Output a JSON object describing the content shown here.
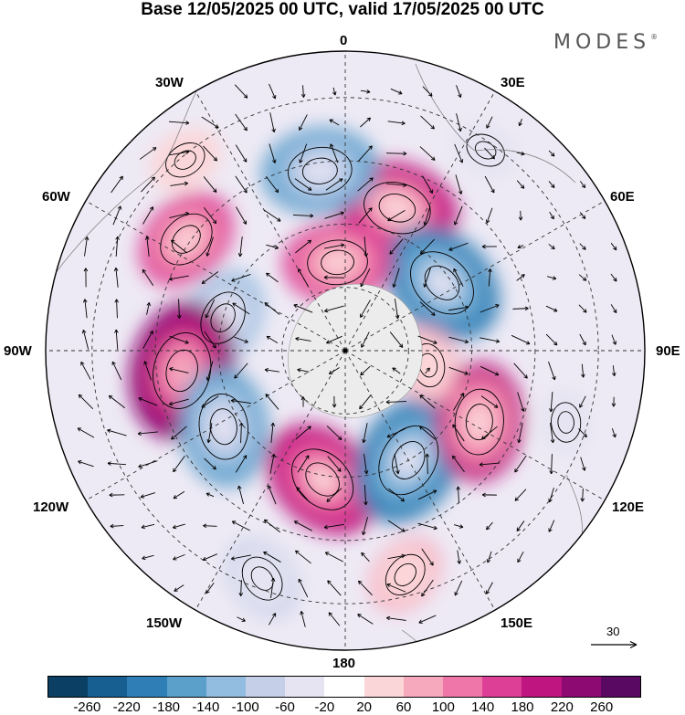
{
  "title": "Base 12/05/2025 00 UTC, valid 17/05/2025 00 UTC",
  "brand": "MODES",
  "brand_mark": "®",
  "longitude_labels": {
    "lon_0": "0",
    "lon_30e": "30E",
    "lon_60e": "60E",
    "lon_90e": "90E",
    "lon_120e": "120E",
    "lon_150e": "150E",
    "lon_180": "180",
    "lon_150w": "150W",
    "lon_120w": "120W",
    "lon_90w": "90W",
    "lon_60w": "60W",
    "lon_30w": "30W"
  },
  "reference_vector": {
    "label": "30"
  },
  "colorbar": {
    "colors": [
      "#0b3f63",
      "#165f90",
      "#2f7fb6",
      "#5b9fcb",
      "#93bde0",
      "#c6cfe8",
      "#e6e4f2",
      "#ffffff",
      "#fbd6d8",
      "#f6a9bd",
      "#ee76a8",
      "#de3f96",
      "#bf1580",
      "#8e0a73",
      "#5a0962"
    ],
    "tick_labels": [
      "-260",
      "-220",
      "-180",
      "-140",
      "-100",
      "-60",
      "-20",
      "20",
      "60",
      "100",
      "140",
      "180",
      "220",
      "260"
    ]
  },
  "anomaly_centers": [
    {
      "lon": 20,
      "colat": 72,
      "value": 190
    },
    {
      "lon": 55,
      "colat": 56,
      "value": -210
    },
    {
      "lon": -5,
      "colat": 42,
      "value": 150
    },
    {
      "lon": -8,
      "colat": 86,
      "value": -170
    },
    {
      "lon": -55,
      "colat": 92,
      "value": 140
    },
    {
      "lon": -75,
      "colat": 60,
      "value": -120
    },
    {
      "lon": -97,
      "colat": 78,
      "value": 240
    },
    {
      "lon": -122,
      "colat": 68,
      "value": -180
    },
    {
      "lon": -170,
      "colat": 62,
      "value": 200
    },
    {
      "lon": 150,
      "colat": 60,
      "value": -220
    },
    {
      "lon": 118,
      "colat": 72,
      "value": 180
    },
    {
      "lon": 100,
      "colat": 40,
      "value": 60
    },
    {
      "lon": -160,
      "colat": 115,
      "value": -80
    },
    {
      "lon": 165,
      "colat": 110,
      "value": 70
    },
    {
      "lon": 108,
      "colat": 110,
      "value": -40
    },
    {
      "lon": -40,
      "colat": 118,
      "value": 50
    },
    {
      "lon": 35,
      "colat": 116,
      "value": -40
    }
  ]
}
